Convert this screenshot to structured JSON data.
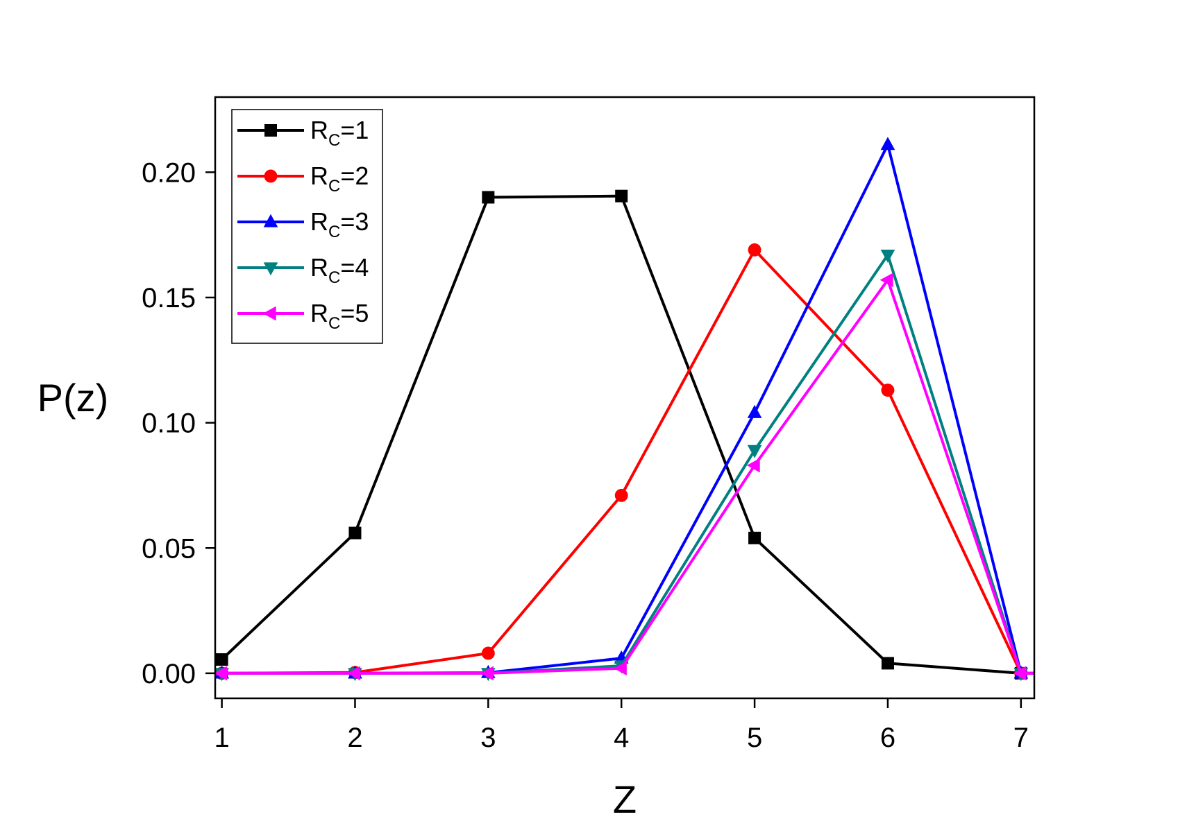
{
  "chart_data": {
    "type": "line",
    "title": "",
    "xlabel": "Z",
    "ylabel": "P(z)",
    "xlim": [
      0.95,
      7.1
    ],
    "ylim": [
      -0.01,
      0.23
    ],
    "xticks": [
      1,
      2,
      3,
      4,
      5,
      6,
      7
    ],
    "yticks": [
      0.0,
      0.05,
      0.1,
      0.15,
      0.2
    ],
    "xtick_labels": [
      "1",
      "2",
      "3",
      "4",
      "5",
      "6",
      "7"
    ],
    "ytick_labels": [
      "0.00",
      "0.05",
      "0.10",
      "0.15",
      "0.20"
    ],
    "grid": false,
    "legend_position": "top-left",
    "x": [
      1,
      2,
      3,
      4,
      5,
      6,
      7
    ],
    "series": [
      {
        "name": "Rc=1",
        "label_main": "R",
        "label_sub": "C",
        "label_rest": "=1",
        "color": "#000000",
        "marker": "square",
        "values": [
          0.0055,
          0.056,
          0.19,
          0.1905,
          0.054,
          0.004,
          0.0
        ]
      },
      {
        "name": "Rc=2",
        "label_main": "R",
        "label_sub": "C",
        "label_rest": "=2",
        "color": "#ff0000",
        "marker": "circle",
        "values": [
          0.0,
          0.0003,
          0.008,
          0.071,
          0.169,
          0.113,
          0.0
        ]
      },
      {
        "name": "Rc=3",
        "label_main": "R",
        "label_sub": "C",
        "label_rest": "=3",
        "color": "#0000ff",
        "marker": "triangle-up",
        "values": [
          0.0,
          0.0,
          0.0002,
          0.006,
          0.104,
          0.211,
          0.0
        ]
      },
      {
        "name": "Rc=4",
        "label_main": "R",
        "label_sub": "C",
        "label_rest": "=4",
        "color": "#008080",
        "marker": "triangle-down",
        "values": [
          0.0,
          0.0,
          0.0,
          0.003,
          0.089,
          0.167,
          0.0
        ]
      },
      {
        "name": "Rc=5",
        "label_main": "R",
        "label_sub": "C",
        "label_rest": "=5",
        "color": "#ff00ff",
        "marker": "triangle-left",
        "values": [
          0.0,
          0.0,
          0.0,
          0.002,
          0.083,
          0.157,
          0.0
        ]
      }
    ]
  }
}
